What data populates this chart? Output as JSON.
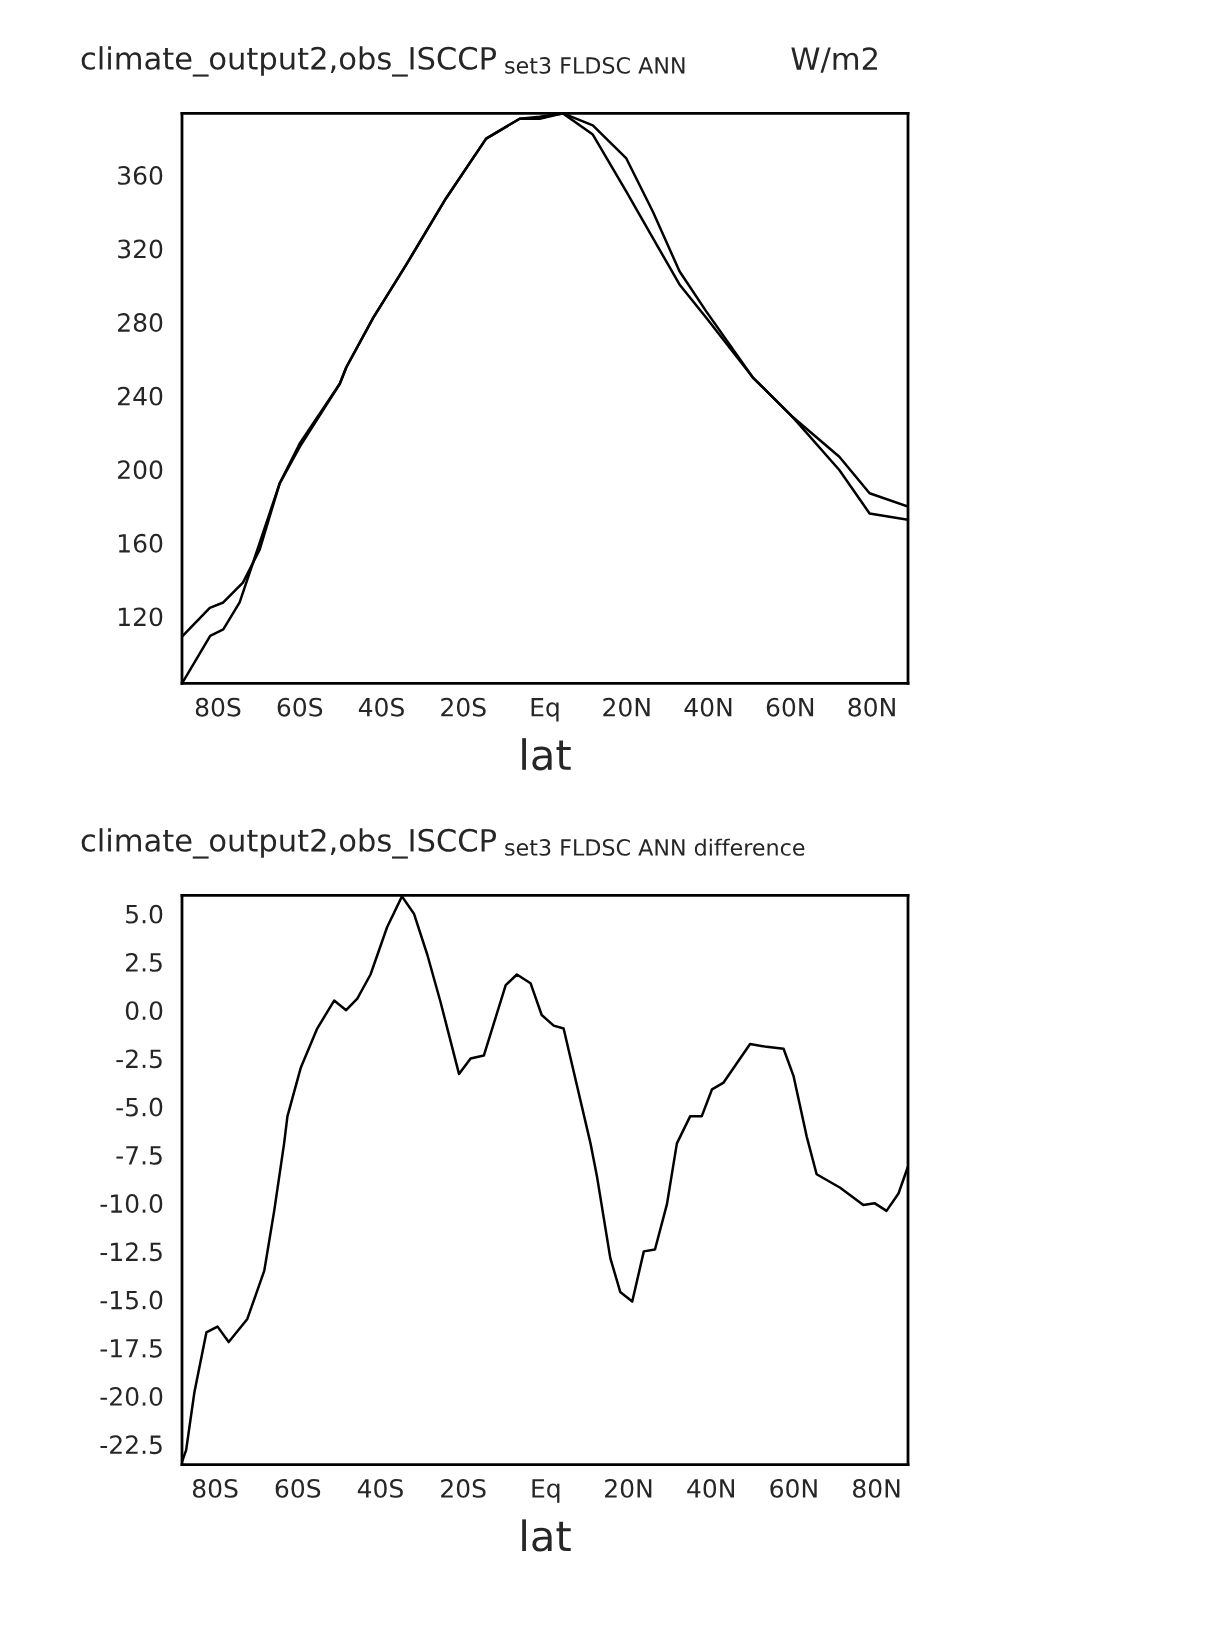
{
  "chart_data": [
    {
      "type": "line",
      "title": "climate_output2,obs_ISCCP",
      "subtitle": "set3 FLDSC ANN",
      "annotations": [
        "W/m2"
      ],
      "xlabel": "lat",
      "xlim": [
        -88.8,
        88.8
      ],
      "ylim": [
        83.6,
        393.5
      ],
      "xticks": [
        {
          "value": -80,
          "label": "80S"
        },
        {
          "value": -60,
          "label": "60S"
        },
        {
          "value": -40,
          "label": "40S"
        },
        {
          "value": -20,
          "label": "20S"
        },
        {
          "value": 0,
          "label": "Eq"
        },
        {
          "value": 20,
          "label": "20N"
        },
        {
          "value": 40,
          "label": "40N"
        },
        {
          "value": 60,
          "label": "60N"
        },
        {
          "value": 80,
          "label": "80N"
        }
      ],
      "yticks": [
        120,
        160,
        200,
        240,
        280,
        320,
        360
      ],
      "series": [
        {
          "color": "#000000",
          "x": [
            -88.8,
            -82,
            -78.7,
            -73.9,
            -69.8,
            -64.9,
            -60,
            -50.2,
            -48.6,
            -42,
            -33.9,
            -24.2,
            -14.4,
            -6.2,
            -1.3,
            4.4,
            11.7,
            19.9,
            26.4,
            32.9,
            39.4,
            50.8,
            60.6,
            72,
            79.4,
            88.8
          ],
          "values": [
            109,
            124.7,
            127.6,
            138.4,
            156.3,
            192.4,
            212.2,
            246.5,
            255.5,
            282.5,
            311.4,
            347.4,
            379.8,
            390.6,
            391.7,
            393.5,
            387,
            369,
            340,
            307.7,
            286,
            250,
            228.4,
            206.8,
            187,
            179.8
          ]
        },
        {
          "color": "#000000",
          "x": [
            -88.8,
            -81.9,
            -78.7,
            -74.7,
            -69.8,
            -64.9,
            -60,
            -50.2,
            -48.6,
            -42,
            -33.9,
            -24.2,
            -14.4,
            -6.2,
            -1.3,
            4.4,
            11.7,
            19.9,
            26.4,
            32.9,
            39.4,
            50.8,
            60.6,
            72,
            79.4,
            88.8
          ],
          "values": [
            83.6,
            109.5,
            113,
            127.6,
            160,
            192.4,
            214,
            246.5,
            255.5,
            282.5,
            311.4,
            347.4,
            379.8,
            390.6,
            390.6,
            393.5,
            382,
            351,
            325.7,
            300.5,
            282.5,
            250,
            228.4,
            199.6,
            176,
            172.6
          ]
        }
      ]
    },
    {
      "type": "line",
      "title": "climate_output2,obs_ISCCP",
      "subtitle": "set3 FLDSC ANN difference",
      "xlabel": "lat",
      "xlim": [
        -88,
        87.6
      ],
      "ylim": [
        -23.55,
        5.95
      ],
      "xticks": [
        {
          "value": -80,
          "label": "80S"
        },
        {
          "value": -60,
          "label": "60S"
        },
        {
          "value": -40,
          "label": "40S"
        },
        {
          "value": -20,
          "label": "20S"
        },
        {
          "value": 0,
          "label": "Eq"
        },
        {
          "value": 20,
          "label": "20N"
        },
        {
          "value": 40,
          "label": "40N"
        },
        {
          "value": 60,
          "label": "60N"
        },
        {
          "value": 80,
          "label": "80N"
        }
      ],
      "yticks": [
        {
          "value": -22.5,
          "label": "-22.5"
        },
        {
          "value": -20,
          "label": "-20.0"
        },
        {
          "value": -17.5,
          "label": "-17.5"
        },
        {
          "value": -15,
          "label": "-15.0"
        },
        {
          "value": -12.5,
          "label": "-12.5"
        },
        {
          "value": -10,
          "label": "-10.0"
        },
        {
          "value": -7.5,
          "label": "-7.5"
        },
        {
          "value": -5,
          "label": "-5.0"
        },
        {
          "value": -2.5,
          "label": "-2.5"
        },
        {
          "value": 0,
          "label": "0.0"
        },
        {
          "value": 2.5,
          "label": "2.5"
        },
        {
          "value": 5,
          "label": "5.0"
        }
      ],
      "series": [
        {
          "color": "#000000",
          "x": [
            -88,
            -87,
            -85,
            -82.1,
            -79.4,
            -76.7,
            -72.2,
            -68.1,
            -65.7,
            -63.3,
            -62.5,
            -59.3,
            -55.3,
            -51.2,
            -48.3,
            -45.6,
            -42.4,
            -38.4,
            -34.8,
            -31.9,
            -28.7,
            -25.5,
            -21,
            -18.2,
            -15,
            -9.7,
            -7,
            -3.7,
            -1,
            1.9,
            4.3,
            10.8,
            12.4,
            15.6,
            18,
            20.9,
            23.7,
            26.4,
            29.3,
            31.7,
            32.5,
            34.9,
            37.7,
            40.2,
            43,
            49.4,
            53.4,
            57.5,
            59.9,
            63.1,
            65.5,
            71.2,
            76.8,
            79.5,
            82.4,
            85.3,
            87.6
          ],
          "values": [
            -23.4,
            -22.8,
            -19.8,
            -16.7,
            -16.4,
            -17.2,
            -16,
            -13.5,
            -10.4,
            -6.9,
            -5.5,
            -3,
            -0.95,
            0.5,
            0,
            0.6,
            1.85,
            4.3,
            5.9,
            5,
            2.9,
            0.45,
            -3.3,
            -2.5,
            -2.35,
            1.3,
            1.85,
            1.4,
            -0.25,
            -0.8,
            -0.95,
            -6.9,
            -8.65,
            -12.85,
            -14.6,
            -15.1,
            -12.5,
            -12.4,
            -10.05,
            -6.9,
            -6.55,
            -5.5,
            -5.5,
            -4.1,
            -3.75,
            -1.75,
            -1.9,
            -2,
            -3.4,
            -6.55,
            -8.5,
            -9.2,
            -10.1,
            -10,
            -10.4,
            -9.5,
            -8.1
          ]
        }
      ]
    }
  ]
}
